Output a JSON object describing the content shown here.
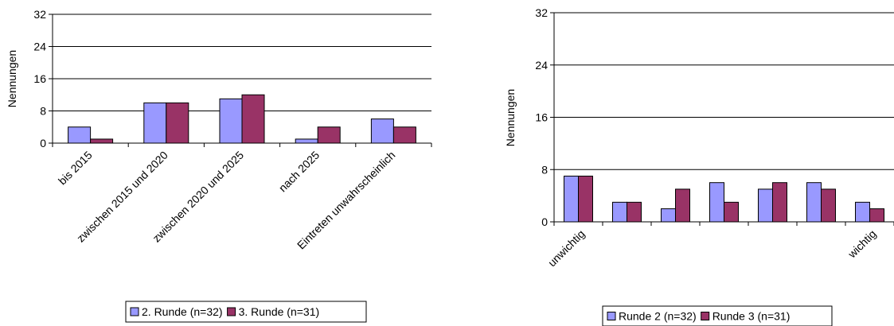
{
  "chart_data": [
    {
      "type": "bar",
      "title": "",
      "xlabel": "",
      "ylabel": "Nennungen",
      "ylim": [
        0,
        32
      ],
      "yticks": [
        0,
        8,
        16,
        24,
        32
      ],
      "grid": true,
      "legend_position": "bottom",
      "categories": [
        "bis 2015",
        "zwischen 2015 und 2020",
        "zwischen 2020 und 2025",
        "nach 2025",
        "Eintreten unwahrscheinlich"
      ],
      "series": [
        {
          "name": "2. Runde (n=32)",
          "color": "#9999ff",
          "values": [
            4,
            10,
            11,
            1,
            6
          ]
        },
        {
          "name": "3. Runde (n=31)",
          "color": "#993366",
          "values": [
            1,
            10,
            12,
            4,
            4
          ]
        }
      ]
    },
    {
      "type": "bar",
      "title": "",
      "xlabel": "",
      "ylabel": "Nennungen",
      "ylim": [
        0,
        32
      ],
      "yticks": [
        0,
        8,
        16,
        24,
        32
      ],
      "grid": true,
      "legend_position": "bottom",
      "categories": [
        "unwichtig",
        "",
        "",
        "",
        "",
        "",
        "wichtig"
      ],
      "series": [
        {
          "name": "Runde 2 (n=32)",
          "color": "#9999ff",
          "values": [
            7,
            3,
            2,
            6,
            5,
            6,
            3
          ]
        },
        {
          "name": "Runde 3 (n=31)",
          "color": "#993366",
          "values": [
            7,
            3,
            5,
            3,
            6,
            5,
            2
          ]
        }
      ]
    }
  ]
}
